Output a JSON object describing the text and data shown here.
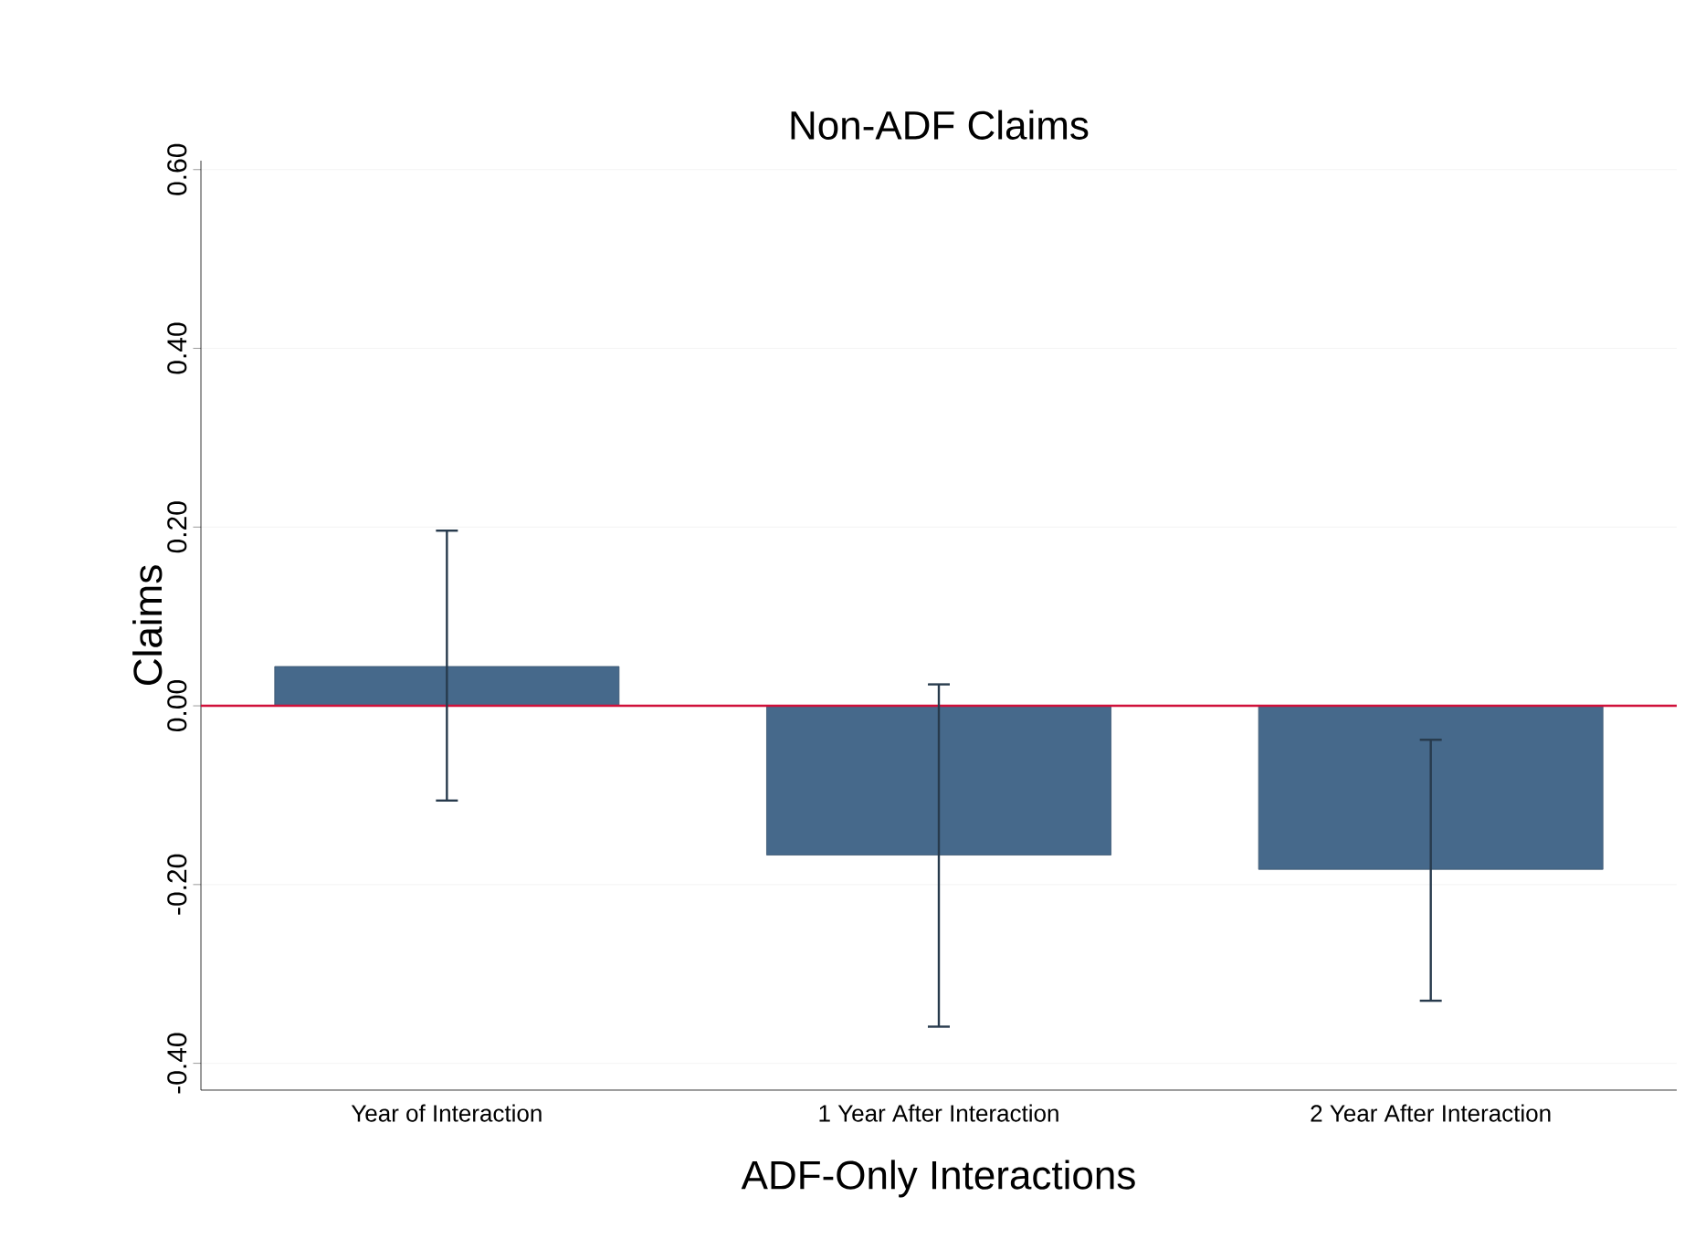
{
  "chart_data": {
    "type": "bar",
    "title": "Non-ADF Claims",
    "xlabel": "ADF-Only Interactions",
    "ylabel": "Claims",
    "categories": [
      "Year of Interaction",
      "1 Year After Interaction",
      "2 Year After Interaction"
    ],
    "values": [
      0.044,
      -0.167,
      -0.183
    ],
    "errors": [
      [
        -0.106,
        0.196
      ],
      [
        -0.359,
        0.024
      ],
      [
        -0.33,
        -0.038
      ]
    ],
    "color": "#46698b",
    "ylim": [
      -0.43,
      0.61
    ],
    "yticks": [
      {
        "value": -0.4,
        "label": "-0.40"
      },
      {
        "value": -0.2,
        "label": "-0.20"
      },
      {
        "value": 0,
        "label": "0.00"
      },
      {
        "value": 0.2,
        "label": "0.20"
      },
      {
        "value": 0.4,
        "label": "0.40"
      },
      {
        "value": 0.6,
        "label": "0.60"
      }
    ],
    "grid": "y",
    "ref_lines": [
      {
        "axis": "y",
        "value": 0,
        "color": "#d0103a"
      }
    ]
  }
}
